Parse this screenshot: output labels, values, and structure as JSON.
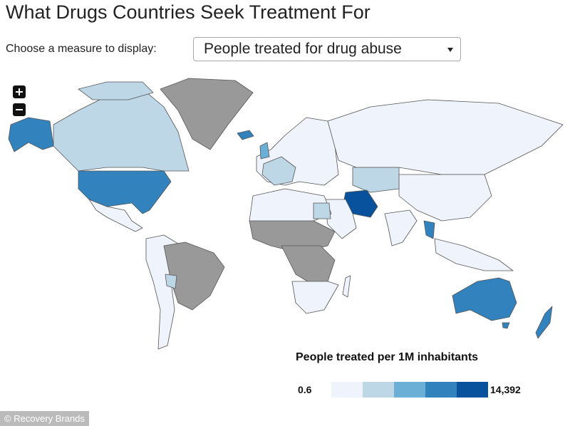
{
  "header": {
    "title": "What Drugs Countries Seek Treatment For"
  },
  "controls": {
    "measure_label": "Choose a measure to display:",
    "measure_value": "People treated for drug abuse"
  },
  "legend": {
    "title": "People treated per 1M inhabitants",
    "min_label": "0.6",
    "max_label": "14,392",
    "colors": [
      "#eff3fb",
      "#bdd7e7",
      "#6baed6",
      "#3182bd",
      "#08519c"
    ]
  },
  "footer": {
    "credit": "© Recovery Brands"
  }
}
